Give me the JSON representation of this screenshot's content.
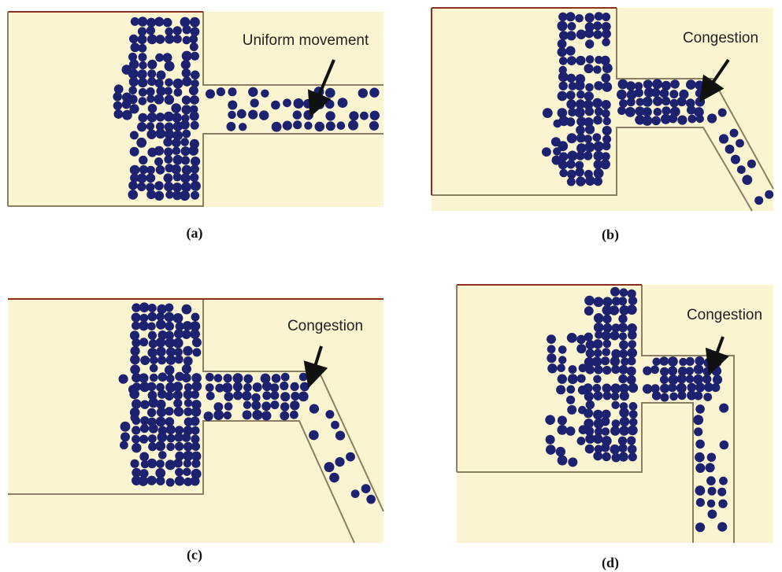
{
  "panels": [
    {
      "annotation": "Uniform movement",
      "caption": "(a)"
    },
    {
      "annotation": "Congestion",
      "caption": "(b)"
    },
    {
      "annotation": "Congestion",
      "caption": "(c)"
    },
    {
      "annotation": "Congestion",
      "caption": "(d)"
    }
  ]
}
